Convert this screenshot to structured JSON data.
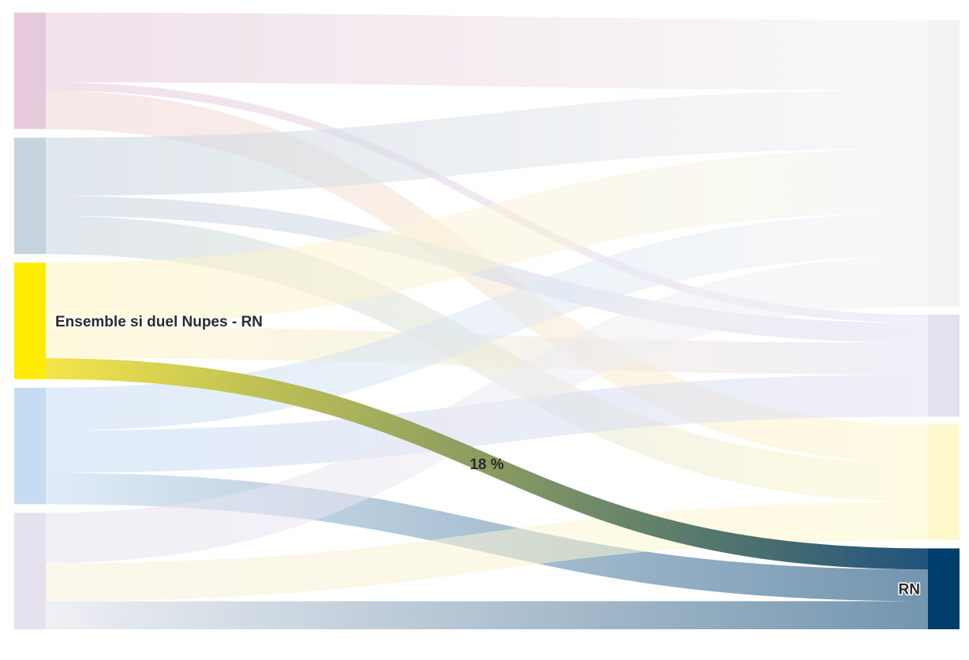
{
  "chart_data": {
    "type": "sankey",
    "title": "",
    "highlight_label": "18 %",
    "source_nodes": [
      {
        "id": "s1",
        "label": "",
        "color": "#e6cadb",
        "flows": [
          {
            "to": "t1",
            "value": 60,
            "color": "#e6cadb"
          },
          {
            "to": "t2",
            "value": 7,
            "color": "#e6cadb"
          },
          {
            "to": "t3",
            "value": 33,
            "color": "#efd3d7"
          }
        ]
      },
      {
        "id": "s2",
        "label": "",
        "color": "#c7d3de",
        "flows": [
          {
            "to": "t1",
            "value": 50,
            "color": "#c7d3de"
          },
          {
            "to": "t2",
            "value": 17,
            "color": "#c7d3de"
          },
          {
            "to": "t3",
            "value": 33,
            "color": "#c7d3de"
          }
        ]
      },
      {
        "id": "s3",
        "label": "Ensemble si duel Nupes - RN",
        "color": "#ffec00",
        "flows": [
          {
            "to": "t1",
            "value": 55,
            "color": "#fff5c0"
          },
          {
            "to": "t2",
            "value": 27,
            "color": "#fff5c0"
          },
          {
            "to": "t4",
            "value": 18,
            "color": "#f2e33a",
            "highlight": true
          }
        ]
      },
      {
        "id": "s4",
        "label": "",
        "color": "#c6dcf2",
        "flows": [
          {
            "to": "t1",
            "value": 37,
            "color": "#c6dcf2"
          },
          {
            "to": "t2",
            "value": 36,
            "color": "#c6dcf2"
          },
          {
            "to": "t4",
            "value": 27,
            "color": "#c6dcf2"
          }
        ]
      },
      {
        "id": "s5",
        "label": "",
        "color": "#e5e1ef",
        "flows": [
          {
            "to": "t1",
            "value": 43,
            "color": "#e5e1ef"
          },
          {
            "to": "t3",
            "value": 33,
            "color": "#f5f0dc"
          },
          {
            "to": "t4",
            "value": 24,
            "color": "#e1e4ec"
          }
        ]
      }
    ],
    "target_nodes": [
      {
        "id": "t1",
        "label": "",
        "color": "#f3f3f3"
      },
      {
        "id": "t2",
        "label": "",
        "color": "#e3e0f0"
      },
      {
        "id": "t3",
        "label": "",
        "color": "#fff8cc"
      },
      {
        "id": "t4",
        "label": "RN",
        "color": "#003e6b"
      }
    ],
    "gradient_end_color": "#0e4470"
  }
}
